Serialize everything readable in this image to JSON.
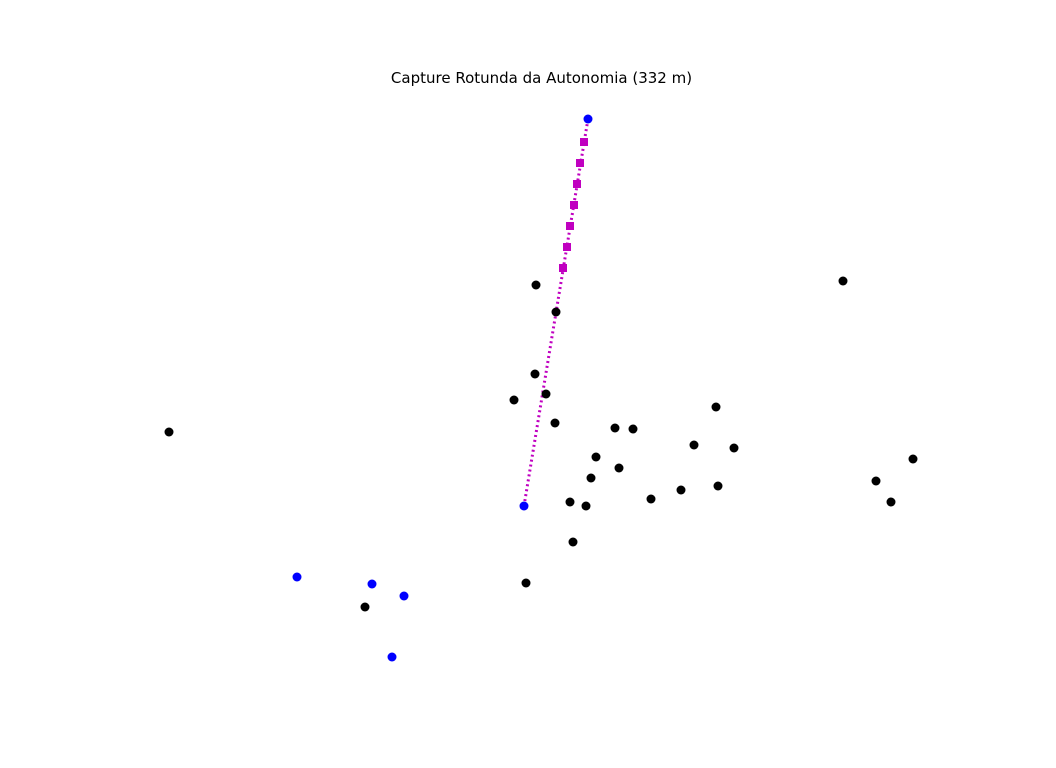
{
  "chart_data": {
    "type": "scatter",
    "title": "Capture Rotunda da Autonomia (332 m)",
    "xlabel": "",
    "ylabel": "",
    "axes_visible": false,
    "grid": false,
    "legend": "none",
    "colors": {
      "black_points": "#000000",
      "blue_points": "#0000ff",
      "path": "#c000c0"
    },
    "series": [
      {
        "style": "black-dot",
        "points": [
          [
            169,
            432
          ],
          [
            536,
            285
          ],
          [
            556,
            312
          ],
          [
            535,
            374
          ],
          [
            514,
            400
          ],
          [
            546,
            394
          ],
          [
            555,
            423
          ],
          [
            615,
            428
          ],
          [
            633,
            429
          ],
          [
            716,
            407
          ],
          [
            694,
            445
          ],
          [
            734,
            448
          ],
          [
            596,
            457
          ],
          [
            619,
            468
          ],
          [
            591,
            478
          ],
          [
            651,
            499
          ],
          [
            681,
            490
          ],
          [
            718,
            486
          ],
          [
            570,
            502
          ],
          [
            586,
            506
          ],
          [
            573,
            542
          ],
          [
            526,
            583
          ],
          [
            365,
            607
          ],
          [
            843,
            281
          ],
          [
            913,
            459
          ],
          [
            876,
            481
          ],
          [
            891,
            502
          ]
        ]
      },
      {
        "style": "blue-dot",
        "points": [
          [
            588,
            119
          ],
          [
            524,
            506
          ],
          [
            297,
            577
          ],
          [
            372,
            584
          ],
          [
            404,
            596
          ],
          [
            392,
            657
          ]
        ]
      },
      {
        "style": "magenta-dotted-line",
        "from": [
          524,
          506
        ],
        "to": [
          588,
          119
        ],
        "square_markers": [
          [
            584,
            142
          ],
          [
            580,
            163
          ],
          [
            577,
            184
          ],
          [
            574,
            205
          ],
          [
            570,
            226
          ],
          [
            567,
            247
          ],
          [
            563,
            268
          ]
        ]
      }
    ]
  }
}
